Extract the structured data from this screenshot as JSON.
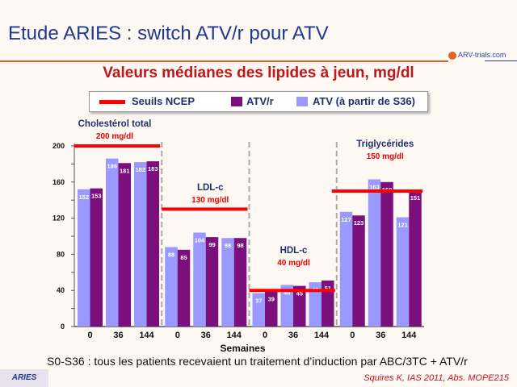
{
  "header": {
    "title": "Etude ARIES : switch ATV/r pour ATV",
    "logo": "ARV-trials.com"
  },
  "chart_data": {
    "type": "bar",
    "title": "Valeurs médianes des lipides à jeun, mg/dl",
    "xlabel": "Semaines",
    "ylabel": "",
    "ylim": [
      0,
      200
    ],
    "yticks": [
      0,
      40,
      80,
      120,
      160,
      200
    ],
    "legend": {
      "placement": "top",
      "threshold": "Seuils NCEP",
      "series_a": "ATV/r",
      "series_b": "ATV (à partir de S36)"
    },
    "colors": {
      "atv_r": "#7b0f7b",
      "atv": "#9999ff",
      "threshold": "#ff0000"
    },
    "groups": [
      {
        "name": "Cholestérol total",
        "threshold_label": "200 mg/dl",
        "threshold": 200,
        "categories": [
          "0",
          "36",
          "144"
        ],
        "atv": [
          152,
          186,
          182
        ],
        "atv_r": [
          153,
          181,
          183
        ]
      },
      {
        "name": "LDL-c",
        "threshold_label": "130 mg/dl",
        "threshold": 130,
        "categories": [
          "0",
          "36",
          "144"
        ],
        "atv": [
          88,
          104,
          98
        ],
        "atv_r": [
          85,
          99,
          98
        ]
      },
      {
        "name": "HDL-c",
        "threshold_label": "40 mg/dl",
        "threshold": 40,
        "categories": [
          "0",
          "36",
          "144"
        ],
        "atv": [
          37,
          46,
          49
        ],
        "atv_r": [
          39,
          45,
          51
        ]
      },
      {
        "name": "Triglycérides",
        "threshold_label": "150 mg/dl",
        "threshold": 150,
        "categories": [
          "0",
          "36",
          "144"
        ],
        "atv": [
          127,
          163,
          121
        ],
        "atv_r": [
          123,
          160,
          151
        ]
      }
    ]
  },
  "footer": {
    "note": "S0-S36 : tous les patients recevaient un traitement d’induction par ABC/3TC + ATV/r",
    "reference": "Squires K, IAS 2011, Abs. MOPE215",
    "badge": "ARIES"
  }
}
